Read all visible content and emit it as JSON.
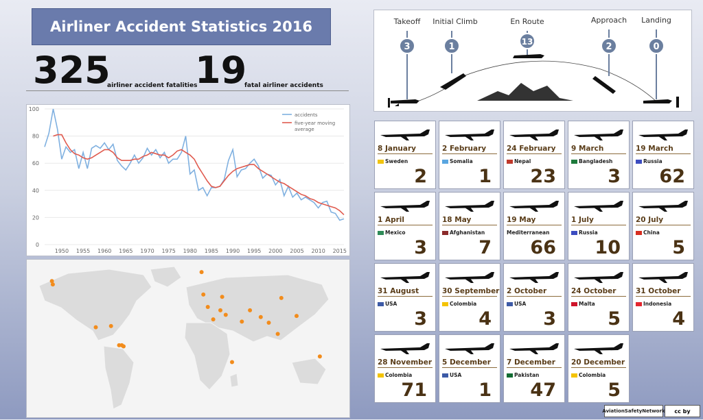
{
  "title": "Airliner Accident Statistics 2016",
  "stats": {
    "fatalities": "325",
    "fatalities_label": "airliner accident fatalities",
    "accidents": "19",
    "accidents_label": "fatal airliner accidents"
  },
  "phases": [
    {
      "name": "Takeoff",
      "count": "3"
    },
    {
      "name": "Initial Climb",
      "count": "1"
    },
    {
      "name": "En Route",
      "count": "13"
    },
    {
      "name": "Approach",
      "count": "2"
    },
    {
      "name": "Landing",
      "count": "0"
    }
  ],
  "chart_data": {
    "type": "line",
    "ylim": [
      0,
      100
    ],
    "yticks": [
      "0",
      "20",
      "40",
      "60",
      "80",
      "100"
    ],
    "xlim": [
      1946,
      2016
    ],
    "xticks": [
      "1950",
      "1955",
      "1960",
      "1965",
      "1970",
      "1975",
      "1980",
      "1985",
      "1990",
      "1995",
      "2000",
      "2005",
      "2010",
      "2015"
    ],
    "legend": [
      "accidents",
      "five-year moving average"
    ],
    "series": [
      {
        "name": "accidents",
        "color": "#7fb0e0",
        "x": [
          1946,
          1947,
          1948,
          1949,
          1950,
          1951,
          1952,
          1953,
          1954,
          1955,
          1956,
          1957,
          1958,
          1959,
          1960,
          1961,
          1962,
          1963,
          1964,
          1965,
          1966,
          1967,
          1968,
          1969,
          1970,
          1971,
          1972,
          1973,
          1974,
          1975,
          1976,
          1977,
          1978,
          1979,
          1980,
          1981,
          1982,
          1983,
          1984,
          1985,
          1986,
          1987,
          1988,
          1989,
          1990,
          1991,
          1992,
          1993,
          1994,
          1995,
          1996,
          1997,
          1998,
          1999,
          2000,
          2001,
          2002,
          2003,
          2004,
          2005,
          2006,
          2007,
          2008,
          2009,
          2010,
          2011,
          2012,
          2013,
          2014,
          2015,
          2016
        ],
        "y": [
          72,
          82,
          100,
          85,
          63,
          72,
          68,
          70,
          56,
          68,
          56,
          71,
          73,
          71,
          75,
          70,
          74,
          62,
          58,
          55,
          60,
          66,
          60,
          64,
          71,
          66,
          70,
          64,
          68,
          60,
          63,
          63,
          68,
          80,
          52,
          55,
          40,
          42,
          36,
          42,
          42,
          43,
          48,
          62,
          70,
          50,
          55,
          56,
          60,
          63,
          58,
          49,
          52,
          51,
          44,
          48,
          36,
          43,
          35,
          38,
          33,
          35,
          33,
          31,
          27,
          31,
          32,
          24,
          23,
          18,
          19
        ]
      },
      {
        "name": "five-year moving average",
        "color": "#e05a4e",
        "x": [
          1948,
          1949,
          1950,
          1951,
          1952,
          1953,
          1954,
          1955,
          1956,
          1957,
          1958,
          1959,
          1960,
          1961,
          1962,
          1963,
          1964,
          1965,
          1966,
          1967,
          1968,
          1969,
          1970,
          1971,
          1972,
          1973,
          1974,
          1975,
          1976,
          1977,
          1978,
          1979,
          1980,
          1981,
          1982,
          1983,
          1984,
          1985,
          1986,
          1987,
          1988,
          1989,
          1990,
          1991,
          1992,
          1993,
          1994,
          1995,
          1996,
          1997,
          1998,
          1999,
          2000,
          2001,
          2002,
          2003,
          2004,
          2005,
          2006,
          2007,
          2008,
          2009,
          2010,
          2011,
          2012,
          2013,
          2014,
          2015,
          2016
        ],
        "y": [
          80,
          81,
          81,
          75,
          70,
          67,
          66,
          64,
          63,
          64,
          66,
          68,
          70,
          70,
          68,
          64,
          62,
          62,
          62,
          63,
          63,
          65,
          66,
          68,
          67,
          66,
          66,
          64,
          66,
          69,
          70,
          68,
          66,
          63,
          57,
          52,
          47,
          43,
          42,
          43,
          47,
          51,
          54,
          56,
          57,
          58,
          59,
          59,
          56,
          54,
          52,
          50,
          48,
          46,
          45,
          43,
          41,
          39,
          37,
          36,
          34,
          33,
          31,
          30,
          29,
          28,
          27,
          25,
          22
        ]
      }
    ]
  },
  "map_dots": [
    [
      -152,
      61
    ],
    [
      -151,
      58
    ],
    [
      -103,
      20
    ],
    [
      -86,
      21
    ],
    [
      -74,
      4
    ],
    [
      -77,
      4
    ],
    [
      -72,
      3
    ],
    [
      15,
      69
    ],
    [
      17,
      49
    ],
    [
      38,
      47
    ],
    [
      36,
      35
    ],
    [
      22,
      38
    ],
    [
      28,
      27
    ],
    [
      42,
      31
    ],
    [
      60,
      25
    ],
    [
      69,
      35
    ],
    [
      81,
      29
    ],
    [
      104,
      46
    ],
    [
      121,
      30
    ],
    [
      90,
      24
    ],
    [
      100,
      14
    ],
    [
      49,
      -11
    ],
    [
      147,
      -6
    ]
  ],
  "accidents": [
    {
      "date": "8 January",
      "country": "Sweden",
      "flag": "#f1c40f",
      "fatalities": "2"
    },
    {
      "date": "2 February",
      "country": "Somalia",
      "flag": "#5aa6e0",
      "fatalities": "1"
    },
    {
      "date": "24 February",
      "country": "Nepal",
      "flag": "#c0392b",
      "fatalities": "23"
    },
    {
      "date": "9 March",
      "country": "Bangladesh",
      "flag": "#1e7a3c",
      "fatalities": "3"
    },
    {
      "date": "19 March",
      "country": "Russia",
      "flag": "#3b4cc0",
      "fatalities": "62"
    },
    {
      "date": "1 April",
      "country": "Mexico",
      "flag": "#2e8b57",
      "fatalities": "3"
    },
    {
      "date": "18 May",
      "country": "Afghanistan",
      "flag": "#8b2a2a",
      "fatalities": "7"
    },
    {
      "date": "19 May",
      "country": "Mediterranean",
      "flag": "",
      "fatalities": "66"
    },
    {
      "date": "1 July",
      "country": "Russia",
      "flag": "#3b4cc0",
      "fatalities": "10"
    },
    {
      "date": "20 July",
      "country": "China",
      "flag": "#d62d20",
      "fatalities": "5"
    },
    {
      "date": "31 August",
      "country": "USA",
      "flag": "#3c5aa6",
      "fatalities": "3"
    },
    {
      "date": "30 September",
      "country": "Colombia",
      "flag": "#f4c300",
      "fatalities": "4"
    },
    {
      "date": "2 October",
      "country": "USA",
      "flag": "#3c5aa6",
      "fatalities": "3"
    },
    {
      "date": "24 October",
      "country": "Malta",
      "flag": "#cf142b",
      "fatalities": "5"
    },
    {
      "date": "31 October",
      "country": "Indonesia",
      "flag": "#e3262f",
      "fatalities": "4"
    },
    {
      "date": "28 November",
      "country": "Colombia",
      "flag": "#f4c300",
      "fatalities": "71"
    },
    {
      "date": "5 December",
      "country": "USA",
      "flag": "#3c5aa6",
      "fatalities": "1"
    },
    {
      "date": "7 December",
      "country": "Pakistan",
      "flag": "#116b32",
      "fatalities": "47"
    },
    {
      "date": "20 December",
      "country": "Colombia",
      "flag": "#f4c300",
      "fatalities": "5"
    }
  ],
  "footer": {
    "logo": "AviationSafetyNetwork",
    "license": "cc by"
  }
}
